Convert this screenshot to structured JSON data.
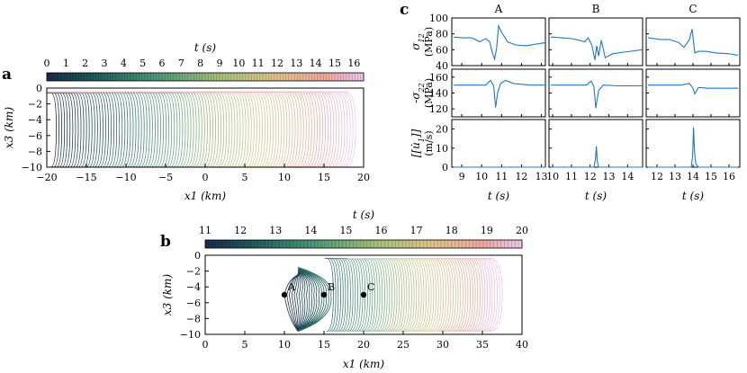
{
  "figure": {
    "panels": {
      "a": "a",
      "b": "b",
      "c": "c"
    }
  },
  "chart_data": [
    {
      "id": "a",
      "type": "contour",
      "title": "",
      "colorbar": {
        "label": "t (s)",
        "range": [
          0,
          16.5
        ],
        "ticks": [
          "0",
          "1",
          "2",
          "3",
          "4",
          "5",
          "6",
          "7",
          "8",
          "9",
          "10",
          "11",
          "12",
          "13",
          "14",
          "15",
          "16"
        ]
      },
      "xlabel": "x1 (km)",
      "ylabel": "x3 (km)",
      "xlim": [
        -20,
        20
      ],
      "ylim": [
        -10,
        0
      ],
      "xticks": [
        "−20",
        "−15",
        "−10",
        "−5",
        "0",
        "5",
        "10",
        "15",
        "20"
      ],
      "yticks": [
        "0",
        "−2",
        "−4",
        "−6",
        "−8",
        "−10"
      ],
      "description_values": {
        "rupture_start_x": -20,
        "rupture_end_x": 19,
        "contour_count": 110
      }
    },
    {
      "id": "b",
      "type": "contour",
      "title": "",
      "colorbar": {
        "label": "t (s)",
        "range": [
          11,
          20
        ],
        "ticks": [
          "11",
          "12",
          "13",
          "14",
          "15",
          "16",
          "17",
          "18",
          "19",
          "20"
        ]
      },
      "xlabel": "x1 (km)",
      "ylabel": "x3 (km)",
      "xlim": [
        0,
        40
      ],
      "ylim": [
        -10,
        0
      ],
      "xticks": [
        "0",
        "5",
        "10",
        "15",
        "20",
        "25",
        "30",
        "35",
        "40"
      ],
      "yticks": [
        "0",
        "−2",
        "−4",
        "−6",
        "−8",
        "−10"
      ],
      "stations": [
        {
          "name": "A",
          "x": 10,
          "y": -5
        },
        {
          "name": "B",
          "x": 15,
          "y": -5
        },
        {
          "name": "C",
          "x": 20,
          "y": -5
        }
      ],
      "description_values": {
        "front_start_x": 10,
        "front_end_x": 37.5,
        "contour_count": 90
      }
    },
    {
      "id": "c",
      "type": "line",
      "columns": [
        "A",
        "B",
        "C"
      ],
      "xlabel": "t (s)",
      "rows": [
        {
          "ylabel": "σ12 (MPa)",
          "ylim": [
            40,
            100
          ],
          "yticks": [
            "40",
            "60",
            "80",
            "100"
          ]
        },
        {
          "ylabel": "-σ22 (MPa)",
          "ylim": [
            110,
            170
          ],
          "yticks": [
            "120",
            "140",
            "160"
          ]
        },
        {
          "ylabel": "[[u̇1]] (m/s)",
          "ylim": [
            0,
            25
          ],
          "yticks": [
            "0",
            "10",
            "20"
          ]
        }
      ],
      "xaxes": [
        {
          "xlim": [
            8.5,
            13.2
          ],
          "xticks": [
            "9",
            "10",
            "11",
            "12",
            "13"
          ]
        },
        {
          "xlim": [
            9.8,
            14.8
          ],
          "xticks": [
            "10",
            "11",
            "12",
            "13",
            "14"
          ]
        },
        {
          "xlim": [
            11.4,
            16.6
          ],
          "xticks": [
            "12",
            "13",
            "14",
            "15",
            "16"
          ]
        }
      ],
      "series": [
        {
          "name": "A σ12",
          "x": [
            8.6,
            9.0,
            9.5,
            9.9,
            10.2,
            10.4,
            10.55,
            10.65,
            10.75,
            10.85,
            11.0,
            11.3,
            11.7,
            12.2,
            12.7,
            13.2
          ],
          "values": [
            76,
            75,
            75,
            70,
            74,
            70,
            55,
            48,
            62,
            90,
            82,
            70,
            66,
            65,
            67,
            69
          ]
        },
        {
          "name": "A -σ22",
          "x": [
            8.6,
            9.5,
            10.2,
            10.45,
            10.6,
            10.7,
            10.8,
            10.95,
            11.2,
            11.6,
            12.4,
            13.2
          ],
          "values": [
            150,
            150,
            150,
            156,
            149,
            122,
            140,
            152,
            156,
            152,
            150,
            150
          ]
        },
        {
          "name": "A slip rate",
          "x": [
            8.6,
            13.2
          ],
          "values": [
            0,
            0
          ]
        },
        {
          "name": "B σ12",
          "x": [
            9.9,
            10.5,
            11.0,
            11.4,
            11.7,
            11.9,
            12.1,
            12.25,
            12.35,
            12.45,
            12.6,
            12.8,
            13.2,
            13.8,
            14.8
          ],
          "values": [
            76,
            75,
            74,
            72,
            70,
            75,
            65,
            47,
            65,
            52,
            72,
            50,
            55,
            57,
            60
          ]
        },
        {
          "name": "B -σ22",
          "x": [
            9.9,
            11.0,
            11.8,
            12.05,
            12.2,
            12.3,
            12.45,
            12.7,
            13.5,
            14.8
          ],
          "values": [
            150,
            150,
            150,
            155,
            148,
            121,
            143,
            150,
            149,
            149
          ]
        },
        {
          "name": "B slip rate",
          "x": [
            9.9,
            12.2,
            12.28,
            12.33,
            12.38,
            12.45,
            14.8
          ],
          "values": [
            0,
            0,
            4,
            11,
            3,
            0,
            0
          ]
        },
        {
          "name": "C σ12",
          "x": [
            11.5,
            12.2,
            12.7,
            13.2,
            13.5,
            13.8,
            13.95,
            14.1,
            14.3,
            14.7,
            15.3,
            16.0,
            16.5
          ],
          "values": [
            75,
            73,
            73,
            69,
            63,
            73,
            86,
            56,
            58,
            58,
            56,
            55,
            53
          ]
        },
        {
          "name": "C -σ22",
          "x": [
            11.5,
            12.5,
            13.3,
            13.8,
            14.0,
            14.1,
            14.3,
            14.8,
            15.6,
            16.5
          ],
          "values": [
            150,
            150,
            150,
            152,
            146,
            139,
            147,
            146,
            146,
            146
          ]
        },
        {
          "name": "C slip rate",
          "x": [
            11.5,
            13.9,
            13.98,
            14.03,
            14.08,
            14.15,
            14.3,
            16.5
          ],
          "values": [
            0,
            0,
            6,
            21,
            9,
            2,
            0,
            0
          ]
        }
      ]
    }
  ]
}
